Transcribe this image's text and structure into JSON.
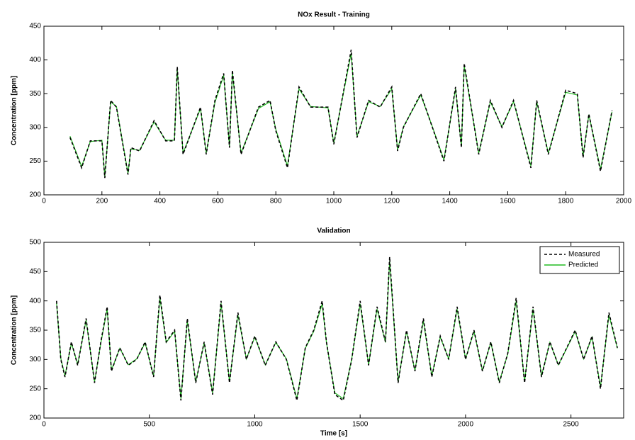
{
  "chart_data": [
    {
      "type": "line",
      "title": "NOx Result - Training",
      "ylabel": "Concentration [ppm]",
      "x": [
        90,
        130,
        160,
        200,
        210,
        230,
        250,
        290,
        300,
        330,
        380,
        420,
        450,
        460,
        480,
        540,
        560,
        590,
        620,
        640,
        650,
        680,
        740,
        780,
        800,
        840,
        880,
        920,
        980,
        1000,
        1060,
        1080,
        1120,
        1160,
        1200,
        1220,
        1240,
        1300,
        1340,
        1380,
        1420,
        1440,
        1450,
        1500,
        1540,
        1580,
        1620,
        1680,
        1700,
        1740,
        1800,
        1840,
        1860,
        1880,
        1920,
        1960
      ],
      "series": [
        {
          "color": "#000000",
          "linestyle": "dashed",
          "values": [
            285,
            240,
            280,
            280,
            225,
            340,
            330,
            230,
            270,
            265,
            310,
            280,
            280,
            390,
            260,
            330,
            260,
            340,
            380,
            270,
            385,
            260,
            330,
            340,
            295,
            240,
            360,
            330,
            330,
            275,
            415,
            285,
            340,
            330,
            360,
            265,
            300,
            350,
            300,
            250,
            360,
            270,
            395,
            260,
            340,
            300,
            340,
            240,
            340,
            260,
            355,
            350,
            255,
            320,
            235,
            325
          ]
        },
        {
          "color": "#22bb22",
          "linestyle": "solid",
          "values": [
            287,
            242,
            279,
            281,
            227,
            338,
            331,
            232,
            268,
            266,
            308,
            281,
            281,
            386,
            262,
            328,
            262,
            337,
            377,
            272,
            381,
            262,
            328,
            338,
            297,
            243,
            357,
            331,
            329,
            277,
            410,
            287,
            338,
            331,
            357,
            267,
            301,
            348,
            301,
            252,
            357,
            272,
            391,
            262,
            338,
            301,
            338,
            243,
            338,
            262,
            352,
            348,
            257,
            319,
            238,
            323
          ]
        }
      ],
      "xlim": [
        0,
        2000
      ],
      "xticks": [
        0,
        200,
        400,
        600,
        800,
        1000,
        1200,
        1400,
        1600,
        1800,
        2000
      ],
      "ylim": [
        200,
        450
      ],
      "yticks": [
        200,
        250,
        300,
        350,
        400,
        450
      ]
    },
    {
      "type": "line",
      "title": "Validation",
      "xlabel": "Time [s]",
      "ylabel": "Concentration [ppm]",
      "x": [
        60,
        80,
        100,
        130,
        160,
        200,
        240,
        270,
        300,
        320,
        360,
        400,
        440,
        480,
        520,
        550,
        580,
        620,
        650,
        680,
        720,
        760,
        800,
        840,
        880,
        920,
        960,
        1000,
        1050,
        1100,
        1150,
        1200,
        1240,
        1280,
        1320,
        1340,
        1380,
        1420,
        1460,
        1500,
        1540,
        1580,
        1620,
        1640,
        1680,
        1720,
        1760,
        1800,
        1840,
        1880,
        1920,
        1960,
        2000,
        2040,
        2080,
        2120,
        2160,
        2200,
        2240,
        2280,
        2320,
        2360,
        2400,
        2440,
        2480,
        2520,
        2560,
        2600,
        2640,
        2680,
        2720
      ],
      "series": [
        {
          "name": "Measured",
          "color": "#000000",
          "linestyle": "dashed",
          "values": [
            400,
            300,
            270,
            330,
            290,
            370,
            260,
            330,
            390,
            280,
            320,
            290,
            300,
            330,
            270,
            410,
            330,
            350,
            230,
            370,
            260,
            330,
            240,
            400,
            260,
            380,
            300,
            340,
            290,
            330,
            300,
            230,
            320,
            350,
            400,
            330,
            240,
            230,
            300,
            400,
            290,
            390,
            330,
            475,
            260,
            350,
            280,
            370,
            270,
            340,
            300,
            390,
            300,
            350,
            280,
            330,
            260,
            310,
            405,
            260,
            390,
            270,
            330,
            290,
            320,
            350,
            300,
            340,
            250,
            380,
            320
          ]
        },
        {
          "name": "Predicted",
          "color": "#22bb22",
          "linestyle": "solid",
          "values": [
            396,
            302,
            272,
            328,
            292,
            367,
            262,
            328,
            386,
            282,
            319,
            291,
            301,
            328,
            272,
            405,
            329,
            348,
            233,
            366,
            262,
            328,
            243,
            396,
            262,
            376,
            301,
            338,
            291,
            329,
            301,
            233,
            319,
            348,
            395,
            329,
            243,
            233,
            301,
            395,
            291,
            386,
            329,
            468,
            262,
            348,
            281,
            366,
            272,
            338,
            301,
            386,
            301,
            348,
            281,
            329,
            262,
            309,
            400,
            262,
            386,
            272,
            329,
            291,
            319,
            348,
            301,
            338,
            253,
            376,
            319
          ]
        }
      ],
      "xlim": [
        0,
        2750
      ],
      "xticks": [
        0,
        500,
        1000,
        1500,
        2000,
        2500
      ],
      "ylim": [
        200,
        500
      ],
      "yticks": [
        200,
        250,
        300,
        350,
        400,
        450,
        500
      ],
      "legend": "northeast"
    }
  ]
}
